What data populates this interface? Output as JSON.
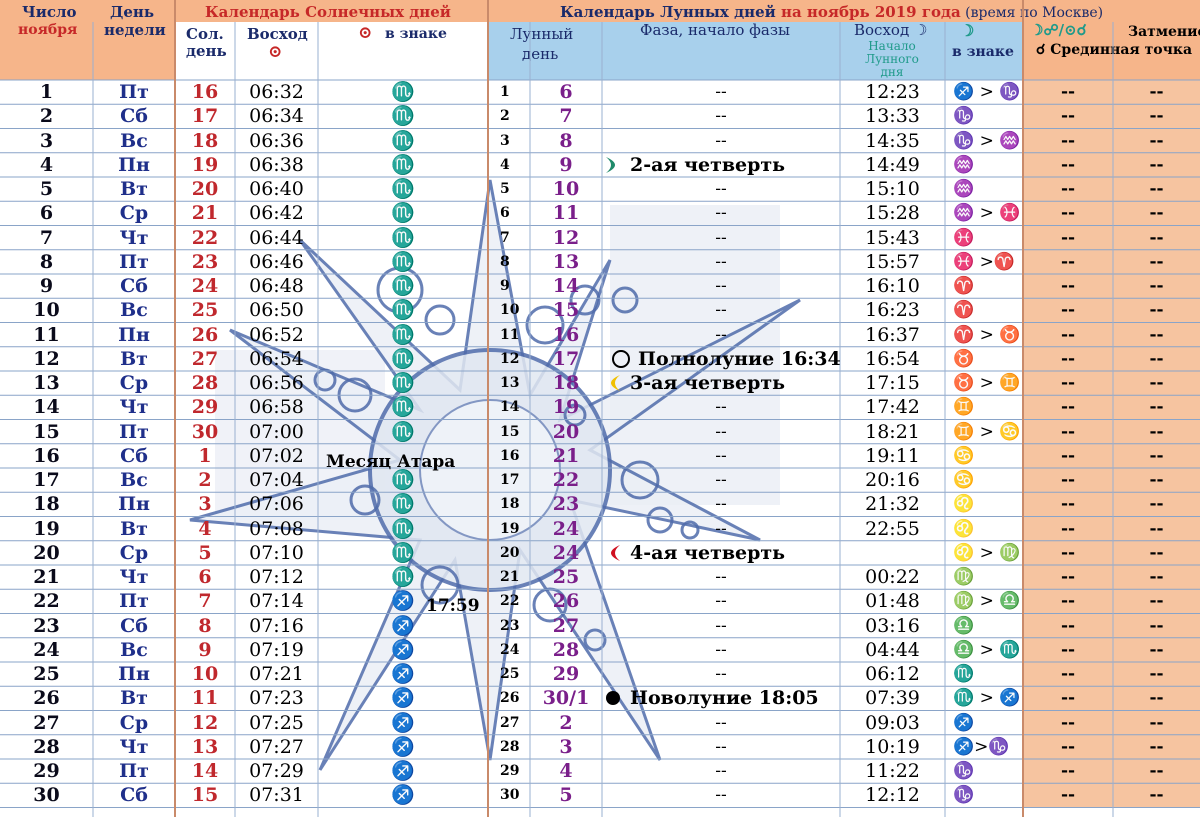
{
  "colors": {
    "header_orange": "#f6b58a",
    "header_blue": "#a8d0ec",
    "row_orange": "#f6c4a0",
    "accent_red": "#c0282d",
    "weekday_blue": "#1f2f8a",
    "lunar_purple": "#7a1f8a"
  },
  "header": {
    "number_label": "Число",
    "month_label": "ноября",
    "weekday_label_1": "День",
    "weekday_label_2": "недели",
    "solar_title": "Календарь Солнечных   дней",
    "sol_day_1": "Сол.",
    "sol_day_2": "день",
    "sunrise": "Восход",
    "sun_symbol": "⊙",
    "sun_sign": "в знаке",
    "lunar_title_a": "Календарь Лунных дней ",
    "lunar_title_b": "на ноябрь 2019 года",
    "lunar_title_c": " (время по Москве)",
    "lunar_day_1": "Лунный",
    "lunar_day_2": "день",
    "phase": "Фаза, начало фазы",
    "moonrise": "Восход ☽",
    "moonrise_sub": "Начало Лунного дня",
    "moon_symbol": "☽",
    "moon_sign": "в знаке",
    "eclipse_symbols": "☽☍/⊙☌",
    "eclipse_label": "Затмение",
    "midpoint_label": "☌ Срединная точка"
  },
  "notes": {
    "month_name": "Месяц Атара",
    "sun_ingress_time": "17:59"
  },
  "rows": [
    {
      "date": "1",
      "dow": "Пт",
      "sday": "16",
      "rise": "06:32",
      "sign": "♏",
      "lidx": "1",
      "lday": "6",
      "phase": "--",
      "mrise": "12:23",
      "msign": "♐ > ♑",
      "e1": "--",
      "e2": "--"
    },
    {
      "date": "2",
      "dow": "Сб",
      "sday": "17",
      "rise": "06:34",
      "sign": "♏",
      "lidx": "2",
      "lday": "7",
      "phase": "--",
      "mrise": "13:33",
      "msign": "♑",
      "e1": "--",
      "e2": "--"
    },
    {
      "date": "3",
      "dow": "Вс",
      "sday": "18",
      "rise": "06:36",
      "sign": "♏",
      "lidx": "3",
      "lday": "8",
      "phase": "--",
      "mrise": "14:35",
      "msign": "♑ > ♒",
      "e1": "--",
      "e2": "--"
    },
    {
      "date": "4",
      "dow": "Пн",
      "sday": "19",
      "rise": "06:38",
      "sign": "♏",
      "lidx": "4",
      "lday": "9",
      "phase": "2-ая четверть",
      "phase_icon": "first-quarter",
      "mrise": "14:49",
      "msign": "♒",
      "e1": "--",
      "e2": "--"
    },
    {
      "date": "5",
      "dow": "Вт",
      "sday": "20",
      "rise": "06:40",
      "sign": "♏",
      "lidx": "5",
      "lday": "10",
      "phase": "--",
      "mrise": "15:10",
      "msign": "♒",
      "e1": "--",
      "e2": "--"
    },
    {
      "date": "6",
      "dow": "Ср",
      "sday": "21",
      "rise": "06:42",
      "sign": "♏",
      "lidx": "6",
      "lday": "11",
      "phase": "--",
      "mrise": "15:28",
      "msign": "♒ > ♓",
      "e1": "--",
      "e2": "--"
    },
    {
      "date": "7",
      "dow": "Чт",
      "sday": "22",
      "rise": "06:44",
      "sign": "♏",
      "lidx": "7",
      "lday": "12",
      "phase": "--",
      "mrise": "15:43",
      "msign": "♓",
      "e1": "--",
      "e2": "--"
    },
    {
      "date": "8",
      "dow": "Пт",
      "sday": "23",
      "rise": "06:46",
      "sign": "♏",
      "lidx": "8",
      "lday": "13",
      "phase": "--",
      "mrise": "15:57",
      "msign": "♓ >♈",
      "e1": "--",
      "e2": "--"
    },
    {
      "date": "9",
      "dow": "Сб",
      "sday": "24",
      "rise": "06:48",
      "sign": "♏",
      "lidx": "9",
      "lday": "14",
      "phase": "--",
      "mrise": "16:10",
      "msign": "♈",
      "e1": "--",
      "e2": "--"
    },
    {
      "date": "10",
      "dow": "Вс",
      "sday": "25",
      "rise": "06:50",
      "sign": "♏",
      "lidx": "10",
      "lday": "15",
      "phase": "--",
      "mrise": "16:23",
      "msign": "♈",
      "e1": "--",
      "e2": "--"
    },
    {
      "date": "11",
      "dow": "Пн",
      "sday": "26",
      "rise": "06:52",
      "sign": "♏",
      "lidx": "11",
      "lday": "16",
      "phase": "--",
      "mrise": "16:37",
      "msign": "♈ > ♉",
      "e1": "--",
      "e2": "--"
    },
    {
      "date": "12",
      "dow": "Вт",
      "sday": "27",
      "rise": "06:54",
      "sign": "♏",
      "lidx": "12",
      "lday": "17",
      "phase": "Полнолуние 16:34",
      "phase_icon": "full",
      "mrise": "16:54",
      "msign": "♉",
      "e1": "--",
      "e2": "--"
    },
    {
      "date": "13",
      "dow": "Ср",
      "sday": "28",
      "rise": "06:56",
      "sign": "♏",
      "lidx": "13",
      "lday": "18",
      "phase": "3-ая четверть",
      "phase_icon": "last-quarter",
      "mrise": "17:15",
      "msign": "♉ > ♊",
      "e1": "--",
      "e2": "--"
    },
    {
      "date": "14",
      "dow": "Чт",
      "sday": "29",
      "rise": "06:58",
      "sign": "♏",
      "lidx": "14",
      "lday": "19",
      "phase": "--",
      "mrise": "17:42",
      "msign": "♊",
      "e1": "--",
      "e2": "--"
    },
    {
      "date": "15",
      "dow": "Пт",
      "sday": "30",
      "rise": "07:00",
      "sign": "♏",
      "lidx": "15",
      "lday": "20",
      "phase": "--",
      "mrise": "18:21",
      "msign": "♊ > ♋",
      "e1": "--",
      "e2": "--"
    },
    {
      "date": "16",
      "dow": "Сб",
      "sday": "1",
      "rise": "07:02",
      "sign": "",
      "lidx": "16",
      "lday": "21",
      "phase": "--",
      "mrise": "19:11",
      "msign": "♋",
      "e1": "--",
      "e2": "--"
    },
    {
      "date": "17",
      "dow": "Вс",
      "sday": "2",
      "rise": "07:04",
      "sign": "♏",
      "lidx": "17",
      "lday": "22",
      "phase": "--",
      "mrise": "20:16",
      "msign": "♋",
      "e1": "--",
      "e2": "--"
    },
    {
      "date": "18",
      "dow": "Пн",
      "sday": "3",
      "rise": "07:06",
      "sign": "♏",
      "lidx": "18",
      "lday": "23",
      "phase": "--",
      "mrise": "21:32",
      "msign": "♌",
      "e1": "--",
      "e2": "--"
    },
    {
      "date": "19",
      "dow": "Вт",
      "sday": "4",
      "rise": "07:08",
      "sign": "♏",
      "lidx": "19",
      "lday": "24",
      "phase": "--",
      "mrise": "22:55",
      "msign": "♌",
      "e1": "--",
      "e2": "--"
    },
    {
      "date": "20",
      "dow": "Ср",
      "sday": "5",
      "rise": "07:10",
      "sign": "♏",
      "lidx": "20",
      "lday": "24",
      "phase": "4-ая четверть",
      "phase_icon": "waning",
      "mrise": "",
      "msign": "♌ > ♍",
      "e1": "--",
      "e2": "--"
    },
    {
      "date": "21",
      "dow": "Чт",
      "sday": "6",
      "rise": "07:12",
      "sign": "♏",
      "lidx": "21",
      "lday": "25",
      "phase": "--",
      "mrise": "00:22",
      "msign": "♍",
      "e1": "--",
      "e2": "--"
    },
    {
      "date": "22",
      "dow": "Пт",
      "sday": "7",
      "rise": "07:14",
      "sign": "♐",
      "lidx": "22",
      "lday": "26",
      "phase": "--",
      "mrise": "01:48",
      "msign": "♍ > ♎",
      "e1": "--",
      "e2": "--"
    },
    {
      "date": "23",
      "dow": "Сб",
      "sday": "8",
      "rise": "07:16",
      "sign": "♐",
      "lidx": "23",
      "lday": "27",
      "phase": "--",
      "mrise": "03:16",
      "msign": "♎",
      "e1": "--",
      "e2": "--"
    },
    {
      "date": "24",
      "dow": "Вс",
      "sday": "9",
      "rise": "07:19",
      "sign": "♐",
      "lidx": "24",
      "lday": "28",
      "phase": "--",
      "mrise": "04:44",
      "msign": "♎ > ♏",
      "e1": "--",
      "e2": "--"
    },
    {
      "date": "25",
      "dow": "Пн",
      "sday": "10",
      "rise": "07:21",
      "sign": "♐",
      "lidx": "25",
      "lday": "29",
      "phase": "--",
      "mrise": "06:12",
      "msign": "♏",
      "e1": "--",
      "e2": "--"
    },
    {
      "date": "26",
      "dow": "Вт",
      "sday": "11",
      "rise": "07:23",
      "sign": "♐",
      "lidx": "26",
      "lday": "30/1",
      "phase": "Новолуние 18:05",
      "phase_icon": "new",
      "mrise": "07:39",
      "msign": "♏ > ♐",
      "e1": "--",
      "e2": "--"
    },
    {
      "date": "27",
      "dow": "Ср",
      "sday": "12",
      "rise": "07:25",
      "sign": "♐",
      "lidx": "27",
      "lday": "2",
      "phase": "--",
      "mrise": "09:03",
      "msign": "♐",
      "e1": "--",
      "e2": "--"
    },
    {
      "date": "28",
      "dow": "Чт",
      "sday": "13",
      "rise": "07:27",
      "sign": "♐",
      "lidx": "28",
      "lday": "3",
      "phase": "--",
      "mrise": "10:19",
      "msign": "♐>♑",
      "e1": "--",
      "e2": "--"
    },
    {
      "date": "29",
      "dow": "Пт",
      "sday": "14",
      "rise": "07:29",
      "sign": "♐",
      "lidx": "29",
      "lday": "4",
      "phase": "--",
      "mrise": "11:22",
      "msign": "♑",
      "e1": "--",
      "e2": "--"
    },
    {
      "date": "30",
      "dow": "Сб",
      "sday": "15",
      "rise": "07:31",
      "sign": "♐",
      "lidx": "30",
      "lday": "5",
      "phase": "--",
      "mrise": "12:12",
      "msign": "♑",
      "e1": "--",
      "e2": "--"
    }
  ]
}
